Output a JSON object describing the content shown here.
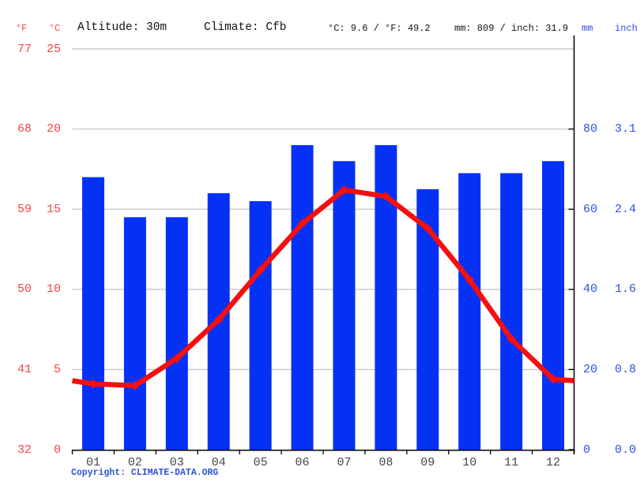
{
  "header": {
    "f_unit": "°F",
    "c_unit": "°C",
    "altitude": "Altitude: 30m",
    "climate": "Climate: Cfb",
    "temp_stats": "°C: 9.6 / °F: 49.2",
    "precip_stats": "mm: 809 / inch: 31.9",
    "mm_unit": "mm",
    "inch_unit": "inch"
  },
  "footer": {
    "copyright": "Copyright: CLIMATE-DATA.ORG"
  },
  "chart_data": {
    "type": "bar+line",
    "title": "Climate graph (monthly precipitation bars and mean temperature line)",
    "categories": [
      "01",
      "02",
      "03",
      "04",
      "05",
      "06",
      "07",
      "08",
      "09",
      "10",
      "11",
      "12"
    ],
    "series": [
      {
        "name": "precipitation_mm",
        "type": "bar",
        "color": "#0531f5",
        "values": [
          68,
          58,
          58,
          64,
          62,
          76,
          72,
          76,
          65,
          69,
          69,
          72
        ]
      },
      {
        "name": "temperature_c",
        "type": "line",
        "color": "#f50f0f",
        "values": [
          4.1,
          4.0,
          5.7,
          8.1,
          11.2,
          14.1,
          16.2,
          15.8,
          13.8,
          10.6,
          6.9,
          4.4
        ],
        "edge_values": [
          4.3,
          4.3
        ]
      }
    ],
    "axes": {
      "left_f": {
        "ticks": [
          "77",
          "68",
          "59",
          "50",
          "41",
          "32"
        ],
        "color": "#fa4343"
      },
      "left_c": {
        "ticks": [
          "25",
          "20",
          "15",
          "10",
          "5",
          "0"
        ],
        "color": "#fa4343"
      },
      "right_mm": {
        "ticks": [
          "80",
          "60",
          "40",
          "20",
          "0"
        ],
        "color": "#2d50e6"
      },
      "right_inch": {
        "ticks": [
          "3.1",
          "2.4",
          "1.6",
          "0.8",
          "0.0"
        ],
        "color": "#2d50e6"
      }
    },
    "ylim_c": [
      0,
      25
    ],
    "ylim_mm": [
      0,
      100
    ],
    "grid": true,
    "legend": "none",
    "annual_mean_c": 9.6,
    "annual_mean_f": 49.2,
    "annual_precip_mm": 809,
    "annual_precip_inch": 31.9
  }
}
